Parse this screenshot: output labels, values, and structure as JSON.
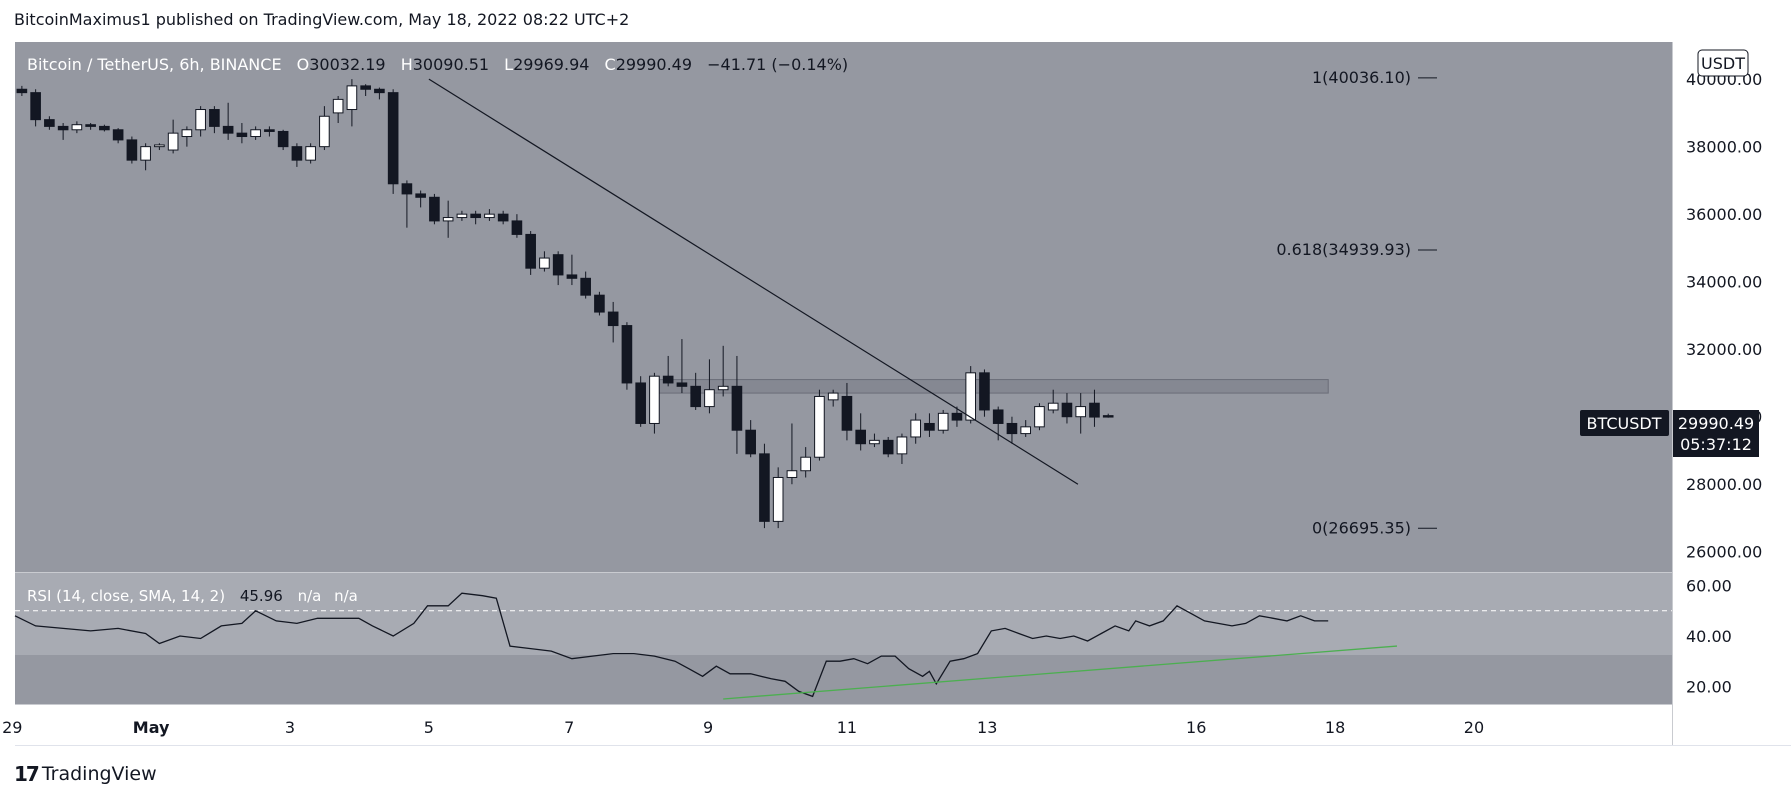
{
  "header": {
    "text": "BitcoinMaximus1 published on TradingView.com, May 18, 2022 08:22 UTC+2"
  },
  "footer": {
    "brand": "TradingView",
    "mark": "17"
  },
  "colors": {
    "price_bg": "#9598a1",
    "rsi_bg": "#9598a1",
    "rsi_band": "#a8abb3",
    "bull": "#ffffff",
    "bear": "#131722",
    "rsi_line": "#131722",
    "trend_support": "#4caf50",
    "zone": "#787b86"
  },
  "chart_data": {
    "type": "candlestick",
    "symbol_line": {
      "pair": "Bitcoin / TetherUS, 6h, BINANCE",
      "o_label": "O",
      "o": "30032.19",
      "h_label": "H",
      "h": "30090.51",
      "l_label": "L",
      "l": "29969.94",
      "c_label": "C",
      "c": "29990.49",
      "change": "−41.71 (−0.14%)"
    },
    "currency": "USDT",
    "ylim": [
      25400,
      41100
    ],
    "y_ticks": [
      "40000.00",
      "38000.00",
      "36000.00",
      "34000.00",
      "32000.00",
      "30000.00",
      "28000.00",
      "26000.00"
    ],
    "x_range": [
      -0.5,
      120.0
    ],
    "x_ticks": [
      {
        "label": "29",
        "x": -0.7
      },
      {
        "label": "May",
        "x": 9.4
      },
      {
        "label": "3",
        "x": 19.5
      },
      {
        "label": "5",
        "x": 29.6
      },
      {
        "label": "7",
        "x": 39.8
      },
      {
        "label": "9",
        "x": 49.9
      },
      {
        "label": "11",
        "x": 60.0
      },
      {
        "label": "13",
        "x": 70.2
      },
      {
        "label": "16",
        "x": 85.4
      },
      {
        "label": "18",
        "x": 95.5
      },
      {
        "label": "20",
        "x": 105.6
      }
    ],
    "candles": [
      [
        39700,
        39600,
        39800,
        39500
      ],
      [
        39600,
        38800,
        39700,
        38600
      ],
      [
        38800,
        38600,
        38900,
        38500
      ],
      [
        38600,
        38500,
        38700,
        38200
      ],
      [
        38500,
        38650,
        38750,
        38400
      ],
      [
        38650,
        38600,
        38700,
        38500
      ],
      [
        38600,
        38500,
        38650,
        38450
      ],
      [
        38500,
        38200,
        38550,
        38100
      ],
      [
        38200,
        37600,
        38300,
        37500
      ],
      [
        37600,
        38000,
        38100,
        37300
      ],
      [
        38000,
        38050,
        38100,
        37900
      ],
      [
        37900,
        38400,
        38800,
        37800
      ],
      [
        38300,
        38500,
        38600,
        38000
      ],
      [
        38500,
        39100,
        39200,
        38300
      ],
      [
        39100,
        38600,
        39200,
        38400
      ],
      [
        38600,
        38400,
        39300,
        38200
      ],
      [
        38400,
        38300,
        38700,
        38100
      ],
      [
        38300,
        38500,
        38600,
        38200
      ],
      [
        38500,
        38450,
        38600,
        38300
      ],
      [
        38450,
        38000,
        38500,
        37900
      ],
      [
        38000,
        37600,
        38100,
        37400
      ],
      [
        37600,
        38000,
        38100,
        37500
      ],
      [
        38000,
        38900,
        39200,
        37900
      ],
      [
        39000,
        39400,
        39500,
        38700
      ],
      [
        39100,
        39800,
        40000,
        38600
      ],
      [
        39800,
        39700,
        39850,
        39500
      ],
      [
        39700,
        39600,
        39750,
        39400
      ],
      [
        39600,
        36900,
        39700,
        36600
      ],
      [
        36900,
        36600,
        37000,
        35600
      ],
      [
        36600,
        36500,
        36700,
        36200
      ],
      [
        36500,
        35800,
        36600,
        35700
      ],
      [
        35800,
        35900,
        36400,
        35300
      ],
      [
        35900,
        36000,
        36100,
        35800
      ],
      [
        36000,
        35900,
        36100,
        35700
      ],
      [
        35900,
        36000,
        36150,
        35800
      ],
      [
        36000,
        35800,
        36100,
        35700
      ],
      [
        35800,
        35400,
        36000,
        35300
      ],
      [
        35400,
        34400,
        35500,
        34200
      ],
      [
        34400,
        34700,
        34900,
        34300
      ],
      [
        34800,
        34200,
        34900,
        33900
      ],
      [
        34200,
        34100,
        34800,
        33900
      ],
      [
        34100,
        33600,
        34300,
        33500
      ],
      [
        33600,
        33100,
        33700,
        33000
      ],
      [
        33100,
        32700,
        33400,
        32200
      ],
      [
        32700,
        31000,
        32800,
        30800
      ],
      [
        31000,
        29800,
        31200,
        29700
      ],
      [
        29800,
        31200,
        31300,
        29500
      ],
      [
        31200,
        31000,
        31800,
        30900
      ],
      [
        31000,
        30900,
        32300,
        30700
      ],
      [
        30900,
        30300,
        31300,
        30200
      ],
      [
        30300,
        30800,
        31700,
        30100
      ],
      [
        30800,
        30900,
        32100,
        30600
      ],
      [
        30900,
        29600,
        31800,
        28900
      ],
      [
        29600,
        28900,
        29900,
        28800
      ],
      [
        28900,
        26900,
        29200,
        26700
      ],
      [
        26900,
        28200,
        28500,
        26700
      ],
      [
        28200,
        28400,
        29800,
        28000
      ],
      [
        28400,
        28800,
        29100,
        28200
      ],
      [
        28800,
        30600,
        30800,
        28700
      ],
      [
        30500,
        30700,
        30800,
        30300
      ],
      [
        30600,
        29600,
        31000,
        29300
      ],
      [
        29600,
        29200,
        30100,
        29000
      ],
      [
        29200,
        29300,
        29500,
        29100
      ],
      [
        29300,
        28900,
        29400,
        28800
      ],
      [
        28900,
        29400,
        29500,
        28600
      ],
      [
        29400,
        29900,
        30100,
        29200
      ],
      [
        29800,
        29600,
        30100,
        29400
      ],
      [
        29600,
        30100,
        30200,
        29500
      ],
      [
        30100,
        29900,
        30300,
        29700
      ],
      [
        29900,
        31300,
        31500,
        29800
      ],
      [
        31300,
        30200,
        31400,
        30000
      ],
      [
        30200,
        29800,
        30300,
        29300
      ],
      [
        29800,
        29500,
        30000,
        29200
      ],
      [
        29500,
        29700,
        29900,
        29400
      ],
      [
        29700,
        30300,
        30400,
        29600
      ],
      [
        30200,
        30400,
        30800,
        30100
      ],
      [
        30400,
        30000,
        30700,
        29800
      ],
      [
        30000,
        30300,
        30700,
        29500
      ],
      [
        30400,
        29990,
        30800,
        29700
      ],
      [
        30032,
        29990,
        30090,
        29970
      ]
    ],
    "fib_levels": [
      {
        "label": "1(40036.10)",
        "value": 40036.1
      },
      {
        "label": "0.618(34939.93)",
        "value": 34939.93
      },
      {
        "label": "0(26695.35)",
        "value": 26695.35
      }
    ],
    "resistance_zone": {
      "x_start": 46.2,
      "x_end": 95.0,
      "low": 30700,
      "high": 31100
    },
    "descending_trendline": {
      "x1": 29.6,
      "y1": 40000,
      "x2": 76.8,
      "y2": 28000
    },
    "last_price_label": {
      "symbol": "BTCUSDT",
      "price": "29990.49",
      "countdown": "05:37:12"
    },
    "rsi": {
      "legend_name": "RSI (14, close, SMA, 14, 2)",
      "legend_value": "45.96",
      "legend_na1": "n/a",
      "legend_na2": "n/a",
      "ylim": [
        13,
        65
      ],
      "band": [
        30,
        70
      ],
      "dashed_level": 50,
      "y_ticks": [
        "60.00",
        "40.00",
        "20.00"
      ],
      "points": [
        [
          -0.5,
          48
        ],
        [
          1.0,
          44
        ],
        [
          3.0,
          43
        ],
        [
          5.0,
          42
        ],
        [
          7.0,
          43
        ],
        [
          9.0,
          41
        ],
        [
          10.0,
          37
        ],
        [
          11.5,
          40
        ],
        [
          13.0,
          39
        ],
        [
          14.5,
          44
        ],
        [
          16.0,
          45
        ],
        [
          17.0,
          50
        ],
        [
          18.5,
          46
        ],
        [
          20.0,
          45
        ],
        [
          21.5,
          47
        ],
        [
          23.0,
          47
        ],
        [
          24.5,
          47
        ],
        [
          25.5,
          44
        ],
        [
          27.0,
          40
        ],
        [
          28.5,
          45
        ],
        [
          29.5,
          52
        ],
        [
          31.0,
          52
        ],
        [
          32.0,
          57
        ],
        [
          33.5,
          56
        ],
        [
          34.5,
          55
        ],
        [
          35.5,
          36
        ],
        [
          37.0,
          35
        ],
        [
          38.5,
          34
        ],
        [
          40.0,
          31
        ],
        [
          41.5,
          32
        ],
        [
          43.0,
          33
        ],
        [
          44.5,
          33
        ],
        [
          46.0,
          32
        ],
        [
          47.5,
          30
        ],
        [
          48.5,
          27
        ],
        [
          49.5,
          24
        ],
        [
          50.5,
          28
        ],
        [
          51.5,
          25
        ],
        [
          53.0,
          25
        ],
        [
          54.5,
          23
        ],
        [
          55.5,
          22
        ],
        [
          56.5,
          18
        ],
        [
          57.5,
          16
        ],
        [
          58.5,
          30
        ],
        [
          59.5,
          30
        ],
        [
          60.5,
          31
        ],
        [
          61.5,
          29
        ],
        [
          62.5,
          32
        ],
        [
          63.5,
          32
        ],
        [
          64.5,
          27
        ],
        [
          65.5,
          24
        ],
        [
          66.0,
          26
        ],
        [
          66.5,
          21
        ],
        [
          67.5,
          30
        ],
        [
          68.5,
          31
        ],
        [
          69.5,
          33
        ],
        [
          70.5,
          42
        ],
        [
          71.5,
          43
        ],
        [
          72.5,
          41
        ],
        [
          73.5,
          39
        ],
        [
          74.5,
          40
        ],
        [
          75.5,
          39
        ],
        [
          76.5,
          40
        ],
        [
          77.5,
          38
        ],
        [
          78.5,
          41
        ],
        [
          79.5,
          44
        ],
        [
          80.5,
          42
        ],
        [
          81.0,
          46
        ],
        [
          82.0,
          44
        ],
        [
          83.0,
          46
        ],
        [
          84.0,
          52
        ],
        [
          85.0,
          49
        ],
        [
          86.0,
          46
        ],
        [
          87.0,
          45
        ],
        [
          88.0,
          44
        ],
        [
          89.0,
          45
        ],
        [
          90.0,
          48
        ],
        [
          91.0,
          47
        ],
        [
          92.0,
          46
        ],
        [
          93.0,
          48
        ],
        [
          94.0,
          46
        ],
        [
          95.0,
          46
        ]
      ],
      "support_line": {
        "x1": 51.0,
        "y1": 15,
        "x2": 100.0,
        "y2": 36
      }
    }
  }
}
